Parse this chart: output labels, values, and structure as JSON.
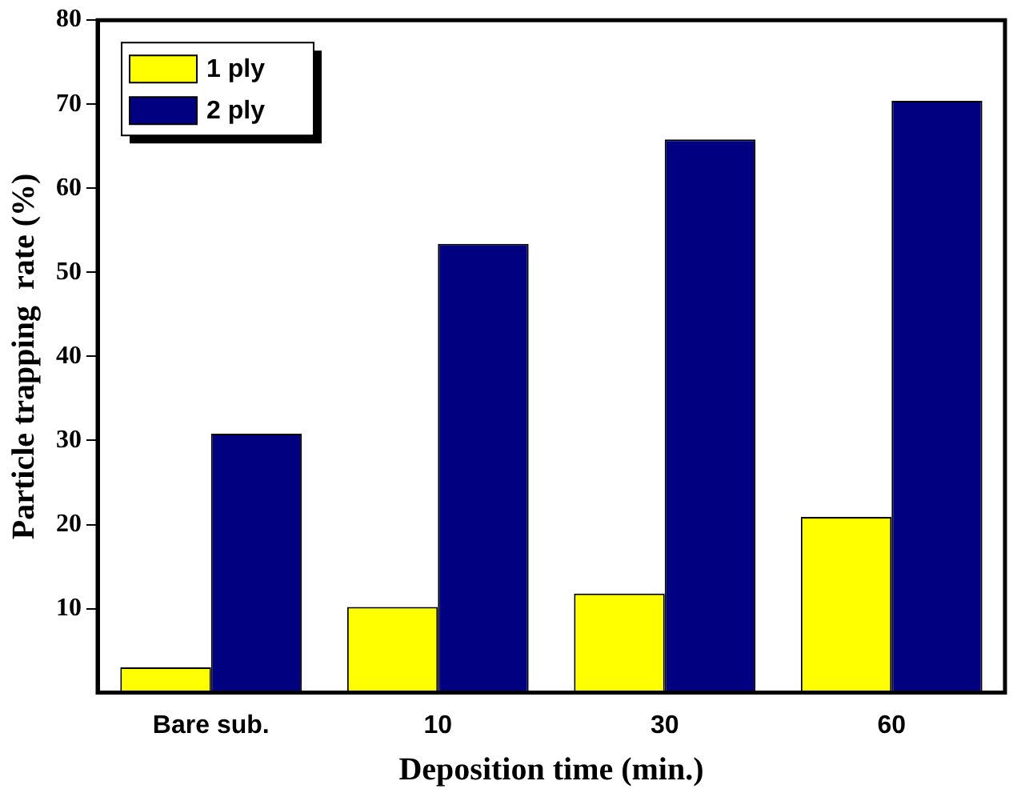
{
  "chart_data": {
    "type": "bar",
    "xlabel": "Deposition time (min.)",
    "ylabel": "Particle trapping  rate (%)",
    "categories": [
      "Bare sub.",
      "10",
      "30",
      "60"
    ],
    "series": [
      {
        "name": "1 ply",
        "color": "#ffff00",
        "values": [
          3.0,
          10.2,
          11.8,
          20.9
        ]
      },
      {
        "name": "2 ply",
        "color": "#000080",
        "values": [
          30.8,
          53.4,
          65.8,
          70.4
        ]
      }
    ],
    "ylim": [
      0,
      80
    ],
    "yticks": [
      10,
      20,
      30,
      40,
      50,
      60,
      70,
      80
    ],
    "grid": false,
    "legend": "top left"
  }
}
